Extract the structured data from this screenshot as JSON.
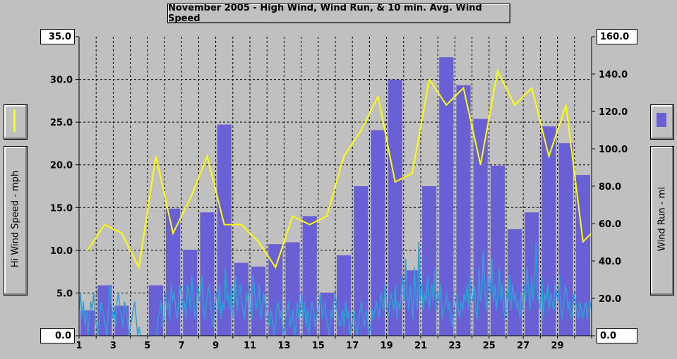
{
  "chart_data": {
    "type": "bar",
    "title": "November 2005 - High Wind, Wind Run, & 10 min. Avg. Wind Speed",
    "y_left_label": "Hi Wind Speed - mph",
    "y_right_label": "Wind Run - mi",
    "y_left_range": [
      0,
      35
    ],
    "y_right_range": [
      0,
      160
    ],
    "y_left_ticks": [
      "35.0",
      "30.0",
      "25.0",
      "20.0",
      "15.0",
      "10.0",
      "5.0",
      "0.0"
    ],
    "y_right_ticks": [
      "160.0",
      "140.0",
      "120.0",
      "100.0",
      "80.0",
      "60.0",
      "40.0",
      "20.0",
      "0.0"
    ],
    "x_ticks": [
      "1",
      "3",
      "5",
      "7",
      "9",
      "11",
      "13",
      "15",
      "17",
      "19",
      "21",
      "23",
      "25",
      "27",
      "29"
    ],
    "x_range": [
      1,
      31
    ],
    "grid": true,
    "legend_colors": {
      "hi_wind": "#ffff00",
      "wind_run": "#6a60d6",
      "avg_wind": "#2f9fd8"
    },
    "series": [
      {
        "type": "bar",
        "axis": "right",
        "days": [
          1,
          2,
          3,
          4,
          5,
          6,
          7,
          8,
          9,
          10,
          11,
          12,
          13,
          14,
          15,
          16,
          17,
          18,
          19,
          20,
          21,
          22,
          23,
          24,
          25,
          26,
          27,
          28,
          29,
          30
        ],
        "values": [
          13.5,
          27,
          16,
          0,
          27,
          68,
          46,
          66,
          113,
          39,
          37,
          49,
          50,
          64,
          23,
          43,
          80,
          110,
          137,
          35,
          80,
          149,
          134,
          116,
          91,
          57,
          66,
          112,
          103,
          86
        ]
      },
      {
        "type": "line",
        "axis": "left",
        "days": [
          1.5,
          2.5,
          3.5,
          4.5,
          5.5,
          6.5,
          7.5,
          8.5,
          9.5,
          10.5,
          11.5,
          12.5,
          13.5,
          14.5,
          15.5,
          16.5,
          17.5,
          18.5,
          19.5,
          20.5,
          21.5,
          22.5,
          23.5,
          24.5,
          25.5,
          26.5,
          27.5,
          28.5,
          29.5,
          30.5,
          31
        ],
        "values": [
          10,
          13,
          12,
          8,
          21,
          12,
          16,
          21,
          13,
          13,
          11,
          8,
          14,
          13,
          14,
          21,
          24,
          28,
          18,
          19,
          30,
          27,
          29,
          20,
          31,
          27,
          29,
          21,
          27,
          11,
          12
        ]
      },
      {
        "type": "line",
        "axis": "left",
        "days_start": 1,
        "days_end": 31,
        "values": [
          3,
          5,
          2,
          4,
          1,
          3,
          0,
          2,
          4,
          3,
          5,
          2,
          1,
          0,
          2,
          4,
          3,
          2,
          1,
          0,
          3,
          6,
          4,
          2,
          3,
          1,
          4,
          5,
          3,
          2,
          1,
          4,
          3,
          2,
          0,
          1,
          2,
          3,
          4,
          2,
          0,
          1,
          0,
          0,
          0,
          0,
          0,
          0,
          0,
          0,
          0,
          0,
          0,
          0,
          2,
          3,
          4,
          1,
          2,
          5,
          3,
          4,
          2,
          6,
          4,
          5,
          3,
          2,
          4,
          6,
          5,
          3,
          4,
          2,
          6,
          5,
          3,
          7,
          4,
          2,
          3,
          6,
          4,
          5,
          7,
          3,
          2,
          4,
          5,
          6,
          3,
          2,
          1,
          4,
          5,
          3,
          6,
          2,
          4,
          3,
          8,
          4,
          5,
          3,
          6,
          2,
          4,
          7,
          3,
          5,
          6,
          4,
          3,
          2,
          5,
          4,
          6,
          3,
          2,
          7,
          5,
          3,
          4,
          6,
          2,
          3,
          5,
          4,
          3,
          2,
          1,
          3,
          2,
          0,
          1,
          3,
          4,
          2,
          3,
          1,
          0,
          2,
          3,
          4,
          1,
          2,
          3,
          0,
          1,
          4,
          2,
          3,
          5,
          2,
          4,
          1,
          3,
          0,
          2,
          4,
          3,
          1,
          2,
          3,
          4,
          5,
          2,
          3,
          4,
          2,
          1,
          0,
          3,
          2,
          4,
          5,
          3,
          2,
          1,
          2,
          3,
          1,
          4,
          2,
          3,
          0,
          1,
          2,
          3,
          1,
          0,
          2,
          3,
          4,
          2,
          1,
          3,
          2,
          0,
          1,
          3,
          2,
          3,
          4,
          3,
          2,
          5,
          4,
          3,
          6,
          4,
          2,
          3,
          5,
          4,
          3,
          6,
          2,
          4,
          3,
          5,
          7,
          4,
          9,
          5,
          3,
          6,
          4,
          2,
          8,
          5,
          3,
          11,
          4,
          6,
          3,
          5,
          4,
          7,
          3,
          5,
          6,
          4,
          8,
          3,
          5,
          4,
          6,
          2,
          3,
          4,
          5,
          3,
          4,
          2,
          1,
          3,
          4,
          5,
          3,
          2,
          4,
          3,
          5,
          4,
          6,
          3,
          7,
          5,
          4,
          6,
          3,
          2,
          8,
          4,
          5,
          10,
          6,
          3,
          4,
          7,
          5,
          9,
          4,
          6,
          3,
          5,
          8,
          4,
          6,
          3,
          2,
          5,
          4,
          7,
          3,
          6,
          4,
          5,
          3,
          4,
          2,
          5,
          3,
          6,
          4,
          8,
          5,
          3,
          7,
          4,
          6,
          11,
          5,
          4,
          3,
          7,
          2,
          5,
          4,
          6,
          3,
          5,
          4,
          3,
          6,
          5,
          4,
          7,
          3,
          2,
          4,
          6,
          5,
          3,
          4,
          2,
          3,
          5,
          4,
          3,
          2,
          4,
          3,
          2,
          3,
          4,
          2,
          3,
          4,
          3
        ]
      }
    ]
  },
  "legend": {
    "hi_wind_swatch": "hi-wind-line",
    "wind_run_swatch": "wind-run-bar"
  }
}
